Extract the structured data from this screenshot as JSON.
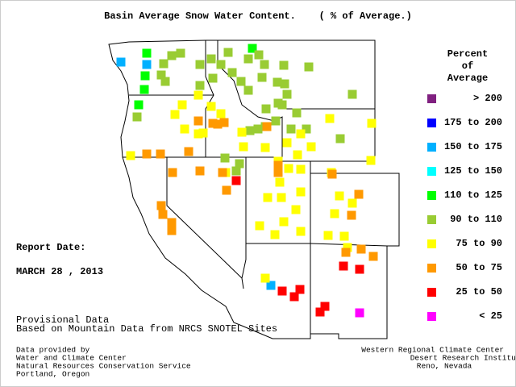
{
  "title": "Basin Average Snow Water Content.    ( % of Average.)",
  "legend": {
    "title": [
      "Percent",
      "of",
      "Average"
    ],
    "items": [
      {
        "label": "> 200",
        "color": "#802080"
      },
      {
        "label": "175 to 200",
        "color": "#0000ff"
      },
      {
        "label": "150 to 175",
        "color": "#00b0ff"
      },
      {
        "label": "125 to 150",
        "color": "#00ffff"
      },
      {
        "label": "110 to 125",
        "color": "#00ff00"
      },
      {
        "label": "90 to 110",
        "color": "#99cc33"
      },
      {
        "label": "75 to  90",
        "color": "#ffff00"
      },
      {
        "label": "50 to  75",
        "color": "#ff9900"
      },
      {
        "label": "25 to  50",
        "color": "#ff0000"
      },
      {
        "label": "<  25",
        "color": "#ff00ff"
      }
    ]
  },
  "report": {
    "label": "Report Date:",
    "date": "MARCH 28 , 2013"
  },
  "notes": [
    "Provisional Data",
    "Based on Mountain Data from NRCS SNOTEL Sites"
  ],
  "credits_left": [
    "Data provided by",
    "Water and Climate Center",
    "Natural Resources Conservation Service",
    "Portland, Oregon"
  ],
  "credits_right": [
    "Western Regional Climate Center",
    "Desert Research Institute",
    "Reno, Nevada"
  ]
}
